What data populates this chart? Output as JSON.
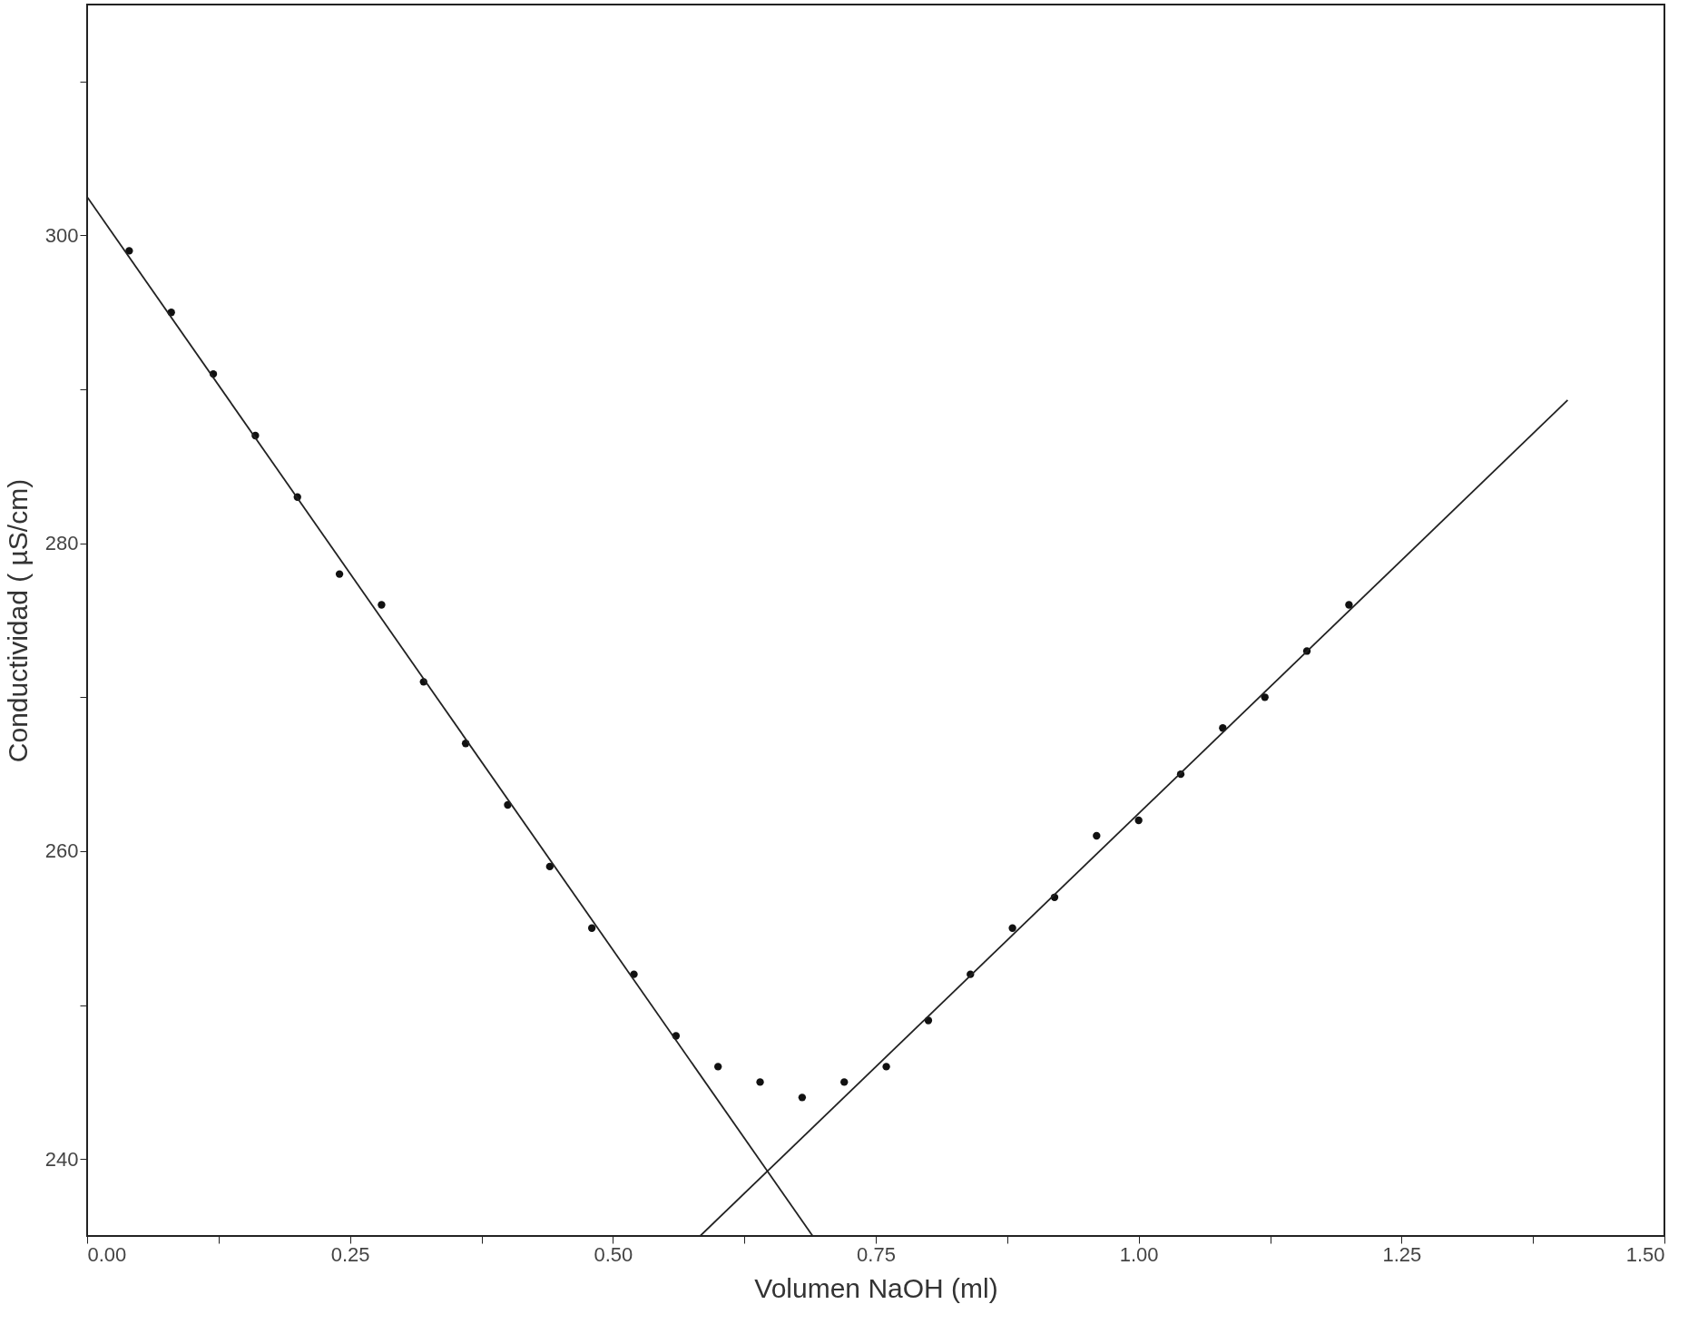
{
  "chart_data": {
    "type": "scatter",
    "xlabel": "Volumen NaOH (ml)",
    "ylabel": "Conductividad (     µS/cm)",
    "xlim": [
      0,
      1.5
    ],
    "ylim": [
      235,
      315
    ],
    "xticks": [
      {
        "value": 0,
        "label": "0.00"
      },
      {
        "value": 0.125,
        "label": null
      },
      {
        "value": 0.25,
        "label": "0.25"
      },
      {
        "value": 0.375,
        "label": null
      },
      {
        "value": 0.5,
        "label": "0.50"
      },
      {
        "value": 0.625,
        "label": null
      },
      {
        "value": 0.75,
        "label": "0.75"
      },
      {
        "value": 0.875,
        "label": null
      },
      {
        "value": 1,
        "label": "1.00"
      },
      {
        "value": 1.125,
        "label": null
      },
      {
        "value": 1.25,
        "label": "1.25"
      },
      {
        "value": 1.375,
        "label": null
      },
      {
        "value": 1.5,
        "label": "1.50"
      }
    ],
    "yticks": [
      240,
      {
        "value": 250,
        "label": null
      },
      260,
      {
        "value": 270,
        "label": null
      },
      280,
      {
        "value": 290,
        "label": null
      },
      300,
      {
        "value": 310,
        "label": null
      }
    ],
    "grid": false,
    "series": [
      {
        "marker": "circle",
        "color": "#111111",
        "x": [
          0.04,
          0.08,
          0.12,
          0.16,
          0.2,
          0.24,
          0.28,
          0.32,
          0.36,
          0.4,
          0.44,
          0.48,
          0.52,
          0.56,
          0.6,
          0.64,
          0.68,
          0.72,
          0.76,
          0.8,
          0.84,
          0.88,
          0.92,
          0.96,
          1.0,
          1.04,
          1.08,
          1.12,
          1.16,
          1.2
        ],
        "values": [
          299,
          295,
          291,
          287,
          283,
          278,
          276,
          271,
          267,
          263,
          259,
          255,
          252,
          248,
          246,
          245,
          244,
          245,
          246,
          249,
          252,
          255,
          257,
          261,
          262,
          265,
          268,
          270,
          273,
          276
        ]
      },
      {
        "type": "line",
        "marker": "none",
        "line_style": "solid",
        "color": "#222222",
        "x": [
          0,
          0.69
        ],
        "values": [
          302.5,
          235
        ]
      },
      {
        "type": "line",
        "marker": "none",
        "line_style": "solid",
        "color": "#222222",
        "x": [
          0.583,
          1.408
        ],
        "values": [
          235,
          289.3
        ]
      }
    ]
  }
}
